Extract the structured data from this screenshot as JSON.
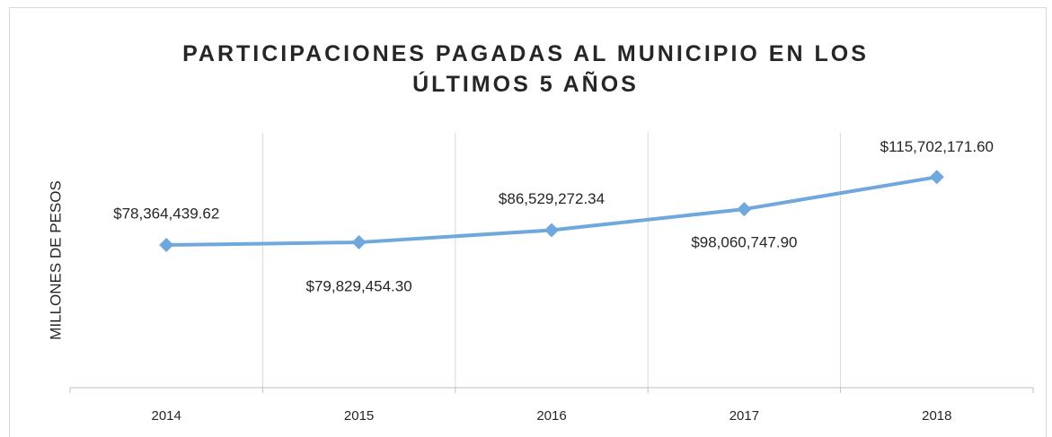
{
  "chart_data": {
    "type": "line",
    "title": "PARTICIPACIONES PAGADAS AL MUNICIPIO EN LOS ÚLTIMOS 5 AÑOS",
    "y_label": "MILLONES DE PESOS",
    "categories": [
      "2014",
      "2015",
      "2016",
      "2017",
      "2018"
    ],
    "values": [
      78364439.62,
      79829454.3,
      86529272.34,
      98060747.9,
      115702171.6
    ],
    "value_labels": [
      "$78,364,439.62",
      "$79,829,454.30",
      "$86,529,272.34",
      "$98,060,747.90",
      "$115,702,171.60"
    ],
    "color": "#6fa8dc",
    "ylim": [
      0,
      140000000
    ],
    "grid": true
  }
}
